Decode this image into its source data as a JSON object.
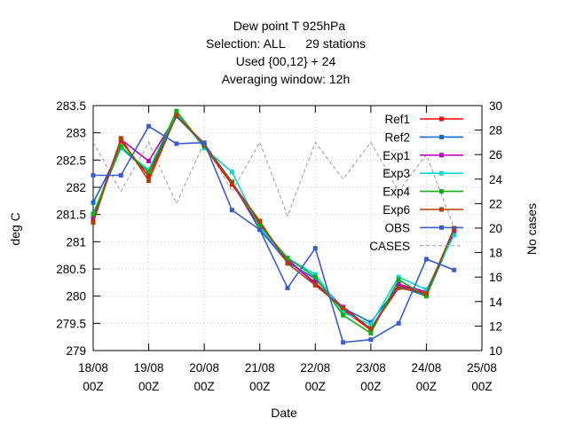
{
  "chart_data": {
    "type": "line",
    "title_lines": [
      "Dew point T 925hPa",
      "Selection: ALL      29 stations",
      "Used {00,12} + 24",
      "Averaging window: 12h"
    ],
    "xlabel": "Date",
    "ylabel": "deg C",
    "y2label": "No cases",
    "x_ticks": [
      {
        "x": 0,
        "line1": "18/08",
        "line2": "00Z"
      },
      {
        "x": 1,
        "line1": "19/08",
        "line2": "00Z"
      },
      {
        "x": 2,
        "line1": "20/08",
        "line2": "00Z"
      },
      {
        "x": 3,
        "line1": "21/08",
        "line2": "00Z"
      },
      {
        "x": 4,
        "line1": "22/08",
        "line2": "00Z"
      },
      {
        "x": 5,
        "line1": "23/08",
        "line2": "00Z"
      },
      {
        "x": 6,
        "line1": "24/08",
        "line2": "00Z"
      },
      {
        "x": 7,
        "line1": "25/08",
        "line2": "00Z"
      }
    ],
    "xlim": [
      0,
      7
    ],
    "ylim": [
      279,
      283.5
    ],
    "y_ticks": [
      "279",
      "279.5",
      "280",
      "280.5",
      "281",
      "281.5",
      "282",
      "282.5",
      "283",
      "283.5"
    ],
    "y2lim": [
      10,
      30
    ],
    "y2_ticks": [
      "10",
      "12",
      "14",
      "16",
      "18",
      "20",
      "22",
      "24",
      "26",
      "28",
      "30"
    ],
    "legend_position": "top-right",
    "x": [
      0,
      0.5,
      1,
      1.5,
      2,
      2.5,
      3,
      3.5,
      4,
      4.5,
      5,
      5.5,
      6,
      6.5
    ],
    "series": [
      {
        "name": "Ref1",
        "color": "#ff0000",
        "marker": "square",
        "axis": "y1",
        "values": [
          281.4,
          282.85,
          282.2,
          283.35,
          282.75,
          282.05,
          281.35,
          280.65,
          280.25,
          279.75,
          279.38,
          280.2,
          280.05,
          281.22
        ]
      },
      {
        "name": "Ref2",
        "color": "#0a6ad8",
        "marker": "square",
        "axis": "y1",
        "values": [
          281.72,
          282.72,
          282.28,
          283.3,
          282.78,
          282.1,
          281.22,
          280.62,
          280.32,
          279.78,
          279.52,
          280.18,
          280.0,
          281.18
        ]
      },
      {
        "name": "Exp1",
        "color": "#c000c0",
        "marker": "square",
        "axis": "y1",
        "values": [
          281.45,
          282.88,
          282.48,
          283.32,
          282.8,
          282.08,
          281.25,
          280.68,
          280.22,
          279.8,
          279.4,
          280.22,
          280.08,
          281.2
        ]
      },
      {
        "name": "Exp3",
        "color": "#00d8d8",
        "marker": "square",
        "axis": "y1",
        "values": [
          281.52,
          282.72,
          282.32,
          283.36,
          282.72,
          282.28,
          281.25,
          280.7,
          280.4,
          279.7,
          279.48,
          280.35,
          280.12,
          281.12
        ]
      },
      {
        "name": "Exp4",
        "color": "#10b010",
        "marker": "square",
        "axis": "y1",
        "values": [
          281.5,
          282.75,
          282.28,
          283.4,
          282.75,
          282.1,
          281.3,
          280.7,
          280.35,
          279.65,
          279.32,
          280.3,
          280.0,
          281.25
        ]
      },
      {
        "name": "Exp6",
        "color": "#b04000",
        "marker": "square",
        "axis": "y1",
        "values": [
          281.35,
          282.9,
          282.12,
          283.32,
          282.78,
          282.08,
          281.38,
          280.6,
          280.2,
          279.78,
          279.4,
          280.15,
          280.05,
          281.25
        ]
      },
      {
        "name": "OBS",
        "color": "#3a5cd0",
        "marker": "square",
        "axis": "y1",
        "values": [
          282.22,
          282.22,
          283.12,
          282.8,
          282.82,
          281.58,
          281.22,
          280.15,
          280.88,
          279.15,
          279.2,
          279.5,
          280.68,
          280.48
        ]
      },
      {
        "name": "CASES",
        "color": "#999999",
        "marker": "none",
        "dash": "dashed",
        "axis": "y2",
        "values": [
          27,
          23,
          27,
          22,
          27,
          23,
          27,
          21,
          27,
          24,
          27,
          23,
          26,
          20
        ]
      }
    ]
  }
}
